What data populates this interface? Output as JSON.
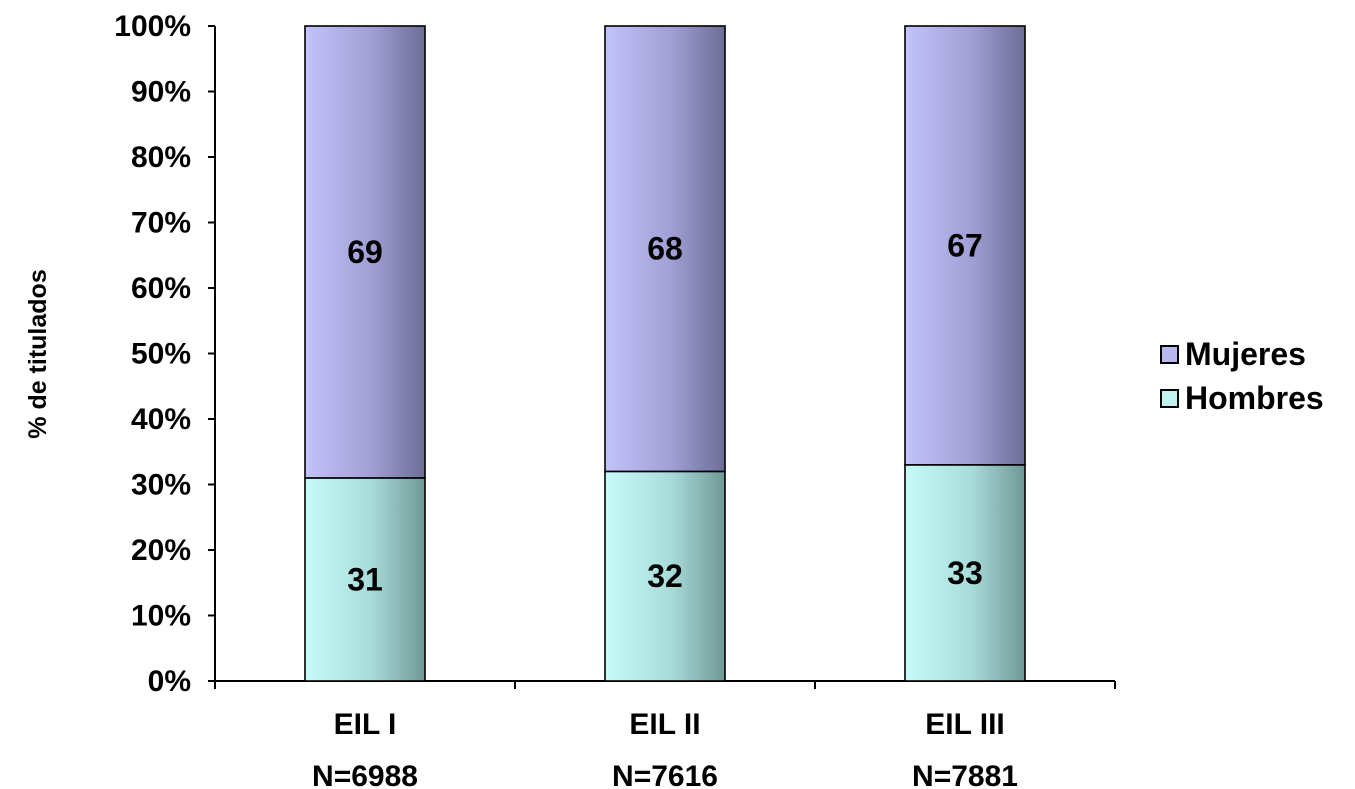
{
  "chart_data": {
    "type": "bar",
    "stacked": true,
    "ylabel": "% de titulados",
    "xlabel": "",
    "ylim": [
      0,
      100
    ],
    "yticks": [
      "0%",
      "10%",
      "20%",
      "30%",
      "40%",
      "50%",
      "60%",
      "70%",
      "80%",
      "90%",
      "100%"
    ],
    "categories": [
      [
        "EIL I",
        "N=6988"
      ],
      [
        "EIL II",
        "N=7616"
      ],
      [
        "EIL III",
        "N=7881"
      ]
    ],
    "series": [
      {
        "name": "Hombres",
        "values": [
          31,
          32,
          33
        ],
        "color": "#bff3f0"
      },
      {
        "name": "Mujeres",
        "values": [
          69,
          68,
          67
        ],
        "color": "#b8b8ee"
      }
    ],
    "legend": {
      "position": "right",
      "order": [
        "Mujeres",
        "Hombres"
      ]
    }
  }
}
